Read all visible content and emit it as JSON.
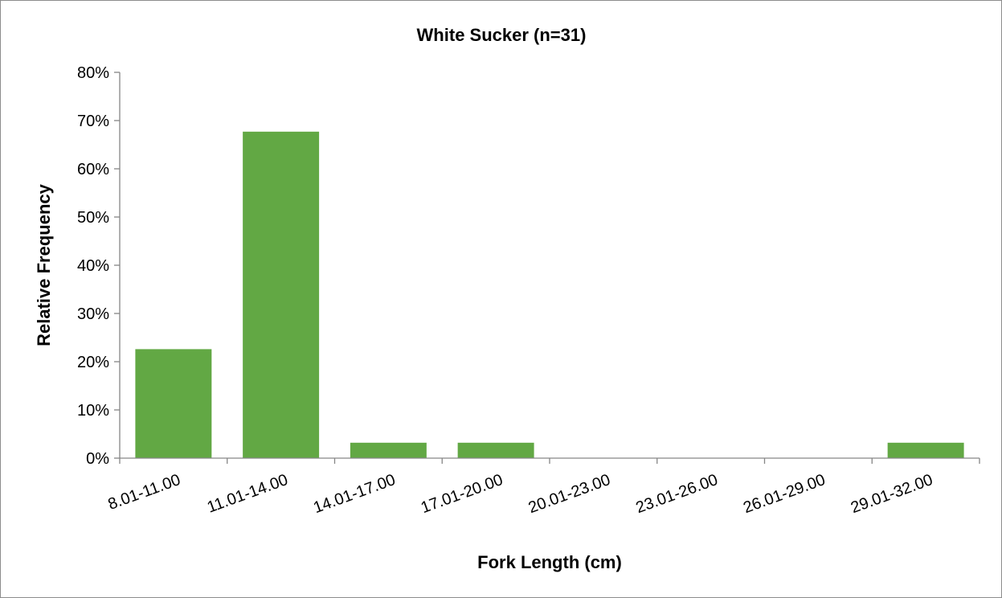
{
  "chart_data": {
    "type": "bar",
    "title": "White Sucker (n=31)",
    "xlabel": "Fork Length (cm)",
    "ylabel": "Relative Frequency",
    "categories": [
      "8.01-11.00",
      "11.01-14.00",
      "14.01-17.00",
      "17.01-20.00",
      "20.01-23.00",
      "23.01-26.00",
      "26.01-29.00",
      "29.01-32.00"
    ],
    "values": [
      22.6,
      67.7,
      3.2,
      3.2,
      0,
      0,
      0,
      3.2
    ],
    "ylim": [
      0,
      80
    ],
    "yticks": [
      "0%",
      "10%",
      "20%",
      "30%",
      "40%",
      "50%",
      "60%",
      "70%",
      "80%"
    ],
    "grid": false,
    "legend": "none",
    "bar_color": "#62a844",
    "axis_color": "#868686"
  }
}
